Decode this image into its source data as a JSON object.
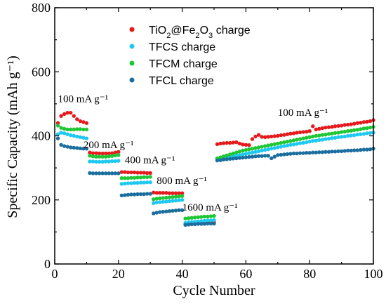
{
  "chart_data": {
    "type": "scatter",
    "title": "",
    "xlabel": "Cycle Number",
    "ylabel": "Specific Capacity (mAh g⁻¹)",
    "xlim": [
      0,
      100
    ],
    "ylim": [
      0,
      800
    ],
    "xticks": [
      0,
      20,
      40,
      60,
      80,
      100
    ],
    "yticks": [
      0,
      200,
      400,
      600,
      800
    ],
    "grid": false,
    "legend": {
      "position": "top-right"
    },
    "series": [
      {
        "name": "TiO2@Fe2O3 charge",
        "color": "#e41a1c",
        "y": [
          440,
          462,
          468,
          472,
          472,
          462,
          452,
          446,
          443,
          440,
          348,
          346,
          346,
          345,
          345,
          345,
          345,
          346,
          348,
          350,
          287,
          287,
          286,
          286,
          286,
          285,
          285,
          285,
          284,
          284,
          223,
          222,
          222,
          222,
          222,
          221,
          221,
          221,
          221,
          221,
          125,
          127,
          128,
          129,
          129,
          130,
          130,
          130,
          131,
          131,
          374,
          376,
          377,
          378,
          378,
          379,
          380,
          376,
          373,
          372,
          371,
          390,
          398,
          403,
          397,
          396,
          397,
          398,
          399,
          400,
          402,
          403,
          405,
          407,
          408,
          410,
          411,
          412,
          413,
          415,
          430,
          420,
          422,
          424,
          426,
          427,
          428,
          430,
          431,
          432,
          434,
          435,
          436,
          438,
          440,
          441,
          443,
          444,
          446,
          449
        ]
      },
      {
        "name": "TFCS charge",
        "color": "#1ec8f0",
        "y": [
          405,
          410,
          408,
          405,
          402,
          400,
          398,
          396,
          394,
          392,
          320,
          320,
          319,
          319,
          319,
          320,
          320,
          321,
          321,
          322,
          250,
          251,
          252,
          252,
          253,
          253,
          254,
          254,
          255,
          255,
          190,
          192,
          193,
          194,
          195,
          196,
          197,
          198,
          199,
          200,
          128,
          130,
          131,
          132,
          133,
          134,
          135,
          136,
          136,
          137,
          326,
          328,
          330,
          332,
          334,
          336,
          338,
          340,
          342,
          344,
          346,
          348,
          350,
          352,
          354,
          356,
          358,
          360,
          362,
          364,
          366,
          368,
          370,
          372,
          373,
          375,
          377,
          378,
          380,
          382,
          384,
          385,
          387,
          388,
          390,
          391,
          393,
          394,
          396,
          397,
          398,
          400,
          401,
          402,
          404,
          405,
          406,
          408,
          409,
          410
        ]
      },
      {
        "name": "TFCM charge",
        "color": "#1fc634",
        "y": [
          432,
          425,
          422,
          420,
          420,
          420,
          421,
          421,
          420,
          420,
          338,
          336,
          335,
          335,
          335,
          335,
          336,
          337,
          339,
          340,
          268,
          268,
          268,
          269,
          269,
          270,
          270,
          271,
          271,
          272,
          202,
          204,
          205,
          206,
          207,
          208,
          209,
          210,
          211,
          212,
          142,
          143,
          144,
          145,
          146,
          147,
          148,
          148,
          149,
          150,
          330,
          333,
          336,
          339,
          342,
          345,
          348,
          351,
          354,
          356,
          358,
          360,
          362,
          364,
          366,
          368,
          370,
          372,
          374,
          376,
          378,
          380,
          382,
          384,
          386,
          388,
          390,
          392,
          394,
          396,
          398,
          400,
          401,
          403,
          404,
          406,
          407,
          409,
          410,
          412,
          413,
          415,
          416,
          418,
          419,
          421,
          423,
          424,
          426,
          428
        ]
      },
      {
        "name": "TFCL charge",
        "color": "#1a6e9e",
        "y": [
          392,
          372,
          368,
          366,
          364,
          363,
          362,
          361,
          360,
          360,
          284,
          283,
          283,
          283,
          283,
          283,
          283,
          283,
          283,
          283,
          214,
          215,
          216,
          217,
          217,
          218,
          218,
          218,
          219,
          219,
          158,
          160,
          162,
          163,
          164,
          165,
          166,
          167,
          168,
          168,
          122,
          123,
          124,
          124,
          125,
          125,
          125,
          126,
          126,
          126,
          323,
          324,
          326,
          327,
          328,
          329,
          330,
          331,
          332,
          333,
          334,
          335,
          336,
          337,
          337,
          338,
          338,
          330,
          335,
          340,
          341,
          342,
          343,
          344,
          345,
          345,
          346,
          346,
          347,
          347,
          348,
          348,
          349,
          349,
          350,
          350,
          351,
          351,
          352,
          352,
          353,
          354,
          354,
          355,
          355,
          356,
          357,
          357,
          358,
          360
        ]
      }
    ],
    "annotations": [
      {
        "id": "anno100a",
        "text": "100 mA g⁻¹",
        "x": 1,
        "y": 505
      },
      {
        "id": "anno200",
        "text": "200 mA g⁻¹",
        "x": 9,
        "y": 362
      },
      {
        "id": "anno400",
        "text": "400 mA g⁻¹",
        "x": 22,
        "y": 315
      },
      {
        "id": "anno800",
        "text": "800 mA g⁻¹",
        "x": 32,
        "y": 250
      },
      {
        "id": "anno1600",
        "text": "1600 mA g⁻¹",
        "x": 40,
        "y": 167
      },
      {
        "id": "anno100b",
        "text": "100 mA g⁻¹",
        "x": 70,
        "y": 462
      }
    ]
  }
}
